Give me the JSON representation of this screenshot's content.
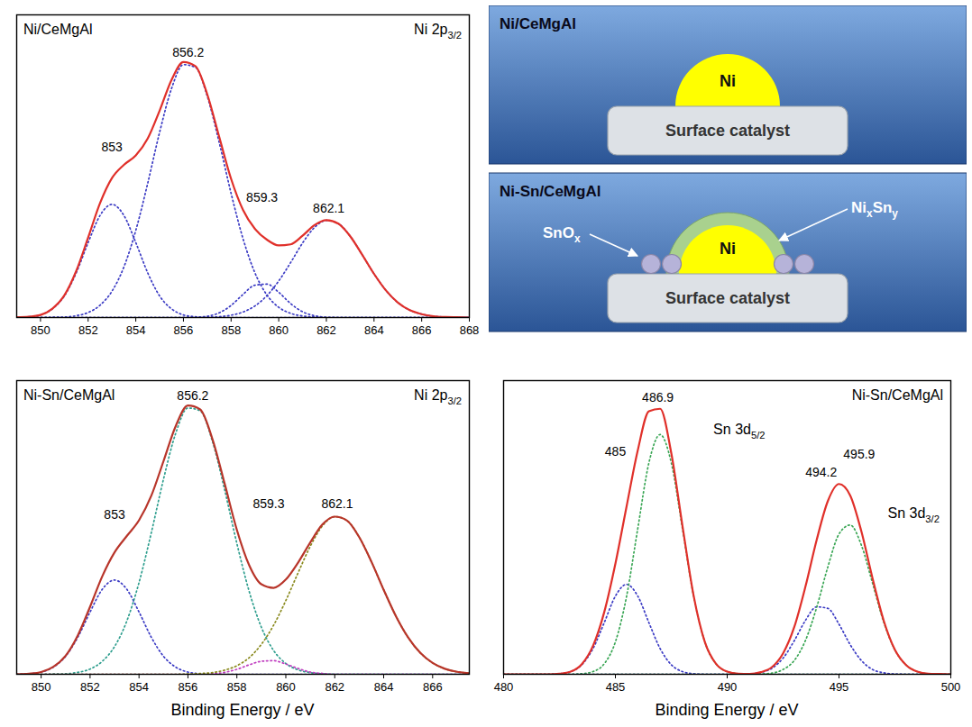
{
  "chart_data": [
    {
      "type": "line",
      "title": "Ni/CeMgAl",
      "subtitle": [
        {
          "t": "Ni 2p"
        },
        {
          "t": "3/2",
          "sub": true
        }
      ],
      "xlabel": null,
      "x": [
        849,
        849.5,
        850,
        850.5,
        851,
        851.5,
        852,
        852.5,
        853,
        853.5,
        854,
        854.5,
        855,
        855.5,
        856,
        856.5,
        857,
        857.5,
        858,
        858.5,
        859,
        859.5,
        860,
        860.5,
        861,
        861.5,
        862,
        862.5,
        863,
        863.5,
        864,
        864.5,
        865,
        865.5,
        866,
        866.5,
        867,
        867.5,
        868
      ],
      "series": [
        {
          "color": "#3b3bc4",
          "line_style": "dotted",
          "values": [
            0.1,
            0.3,
            1.0,
            3.3,
            8.2,
            17.0,
            28.5,
            38.8,
            43.0,
            38.8,
            28.5,
            17.0,
            8.2,
            3.3,
            1.0,
            0.3,
            0.1,
            0,
            0,
            0,
            0,
            0,
            0,
            0,
            0,
            0,
            0,
            0,
            0,
            0,
            0,
            0,
            0,
            0,
            0,
            0,
            0,
            0,
            0
          ]
        },
        {
          "color": "#3b3bc4",
          "line_style": "dotted",
          "values": [
            0,
            0,
            0,
            0.1,
            0.2,
            0.7,
            1.9,
            4.7,
            10.0,
            19.2,
            33.1,
            51.0,
            70.4,
            87.0,
            96.1,
            95.1,
            84.1,
            66.6,
            47.2,
            30.0,
            17.0,
            8.6,
            3.9,
            1.6,
            0.6,
            0.2,
            0,
            0,
            0,
            0,
            0,
            0,
            0,
            0,
            0,
            0,
            0,
            0,
            0
          ]
        },
        {
          "color": "#3b3bc4",
          "line_style": "dotted",
          "values": [
            0,
            0,
            0,
            0,
            0,
            0,
            0,
            0,
            0,
            0,
            0,
            0,
            0,
            0,
            0,
            0.1,
            0.5,
            1.8,
            4.6,
            8.8,
            12.3,
            12.7,
            9.6,
            5.3,
            2.2,
            0.7,
            0.1,
            0,
            0,
            0,
            0,
            0,
            0,
            0,
            0,
            0,
            0,
            0,
            0
          ]
        },
        {
          "color": "#3b3bc4",
          "line_style": "dotted",
          "values": [
            0,
            0,
            0,
            0,
            0,
            0,
            0,
            0,
            0,
            0,
            0,
            0,
            0,
            0,
            0,
            0.0,
            0.1,
            0.3,
            0.9,
            2.1,
            4.4,
            8.3,
            13.9,
            20.9,
            28.3,
            34.2,
            36.9,
            35.7,
            30.9,
            23.9,
            16.6,
            10.3,
            5.7,
            2.8,
            1.3,
            0.5,
            0.2,
            0.1,
            0
          ]
        },
        {
          "color": "#e0302a",
          "line_style": "solid",
          "values": [
            0.1,
            0.3,
            1.0,
            3.4,
            8.4,
            17.7,
            30.4,
            43.5,
            53.0,
            58.0,
            61.6,
            68.0,
            78.6,
            90.3,
            97.1,
            95.5,
            84.8,
            68.7,
            52.7,
            40.9,
            33.7,
            29.6,
            27.4,
            27.8,
            31.1,
            35.1,
            37.0,
            35.7,
            30.9,
            23.9,
            16.6,
            10.3,
            5.7,
            2.8,
            1.3,
            0.5,
            0.2,
            0.1,
            0
          ]
        }
      ],
      "xlim": [
        849,
        868
      ],
      "xticks": [
        850,
        852,
        854,
        856,
        858,
        860,
        862,
        864,
        866,
        868
      ],
      "ylim": [
        0,
        115
      ],
      "tick_labels": "x",
      "grid": false,
      "annotations": [
        {
          "text": "853",
          "x": 853,
          "y": 63
        },
        {
          "text": "856.2",
          "x": 856.2,
          "y": 99
        },
        {
          "text": "859.3",
          "x": 859.3,
          "y": 44
        },
        {
          "text": "862.1",
          "x": 862.1,
          "y": 40
        }
      ]
    },
    {
      "type": "line",
      "title": "Ni-Sn/CeMgAl",
      "subtitle": [
        {
          "t": "Ni 2p"
        },
        {
          "t": "3/2",
          "sub": true
        }
      ],
      "xlabel": "Binding Energy / eV",
      "x": [
        849,
        849.5,
        850,
        850.5,
        851,
        851.5,
        852,
        852.5,
        853,
        853.5,
        854,
        854.5,
        855,
        855.5,
        856,
        856.5,
        857,
        857.5,
        858,
        858.5,
        859,
        859.5,
        860,
        860.5,
        861,
        861.5,
        862,
        862.5,
        863,
        863.5,
        864,
        864.5,
        865,
        865.5,
        866,
        866.5,
        867,
        867.5
      ],
      "series": [
        {
          "color": "#3b3bc4",
          "line_style": "dotted",
          "values": [
            0.0,
            0.2,
            0.8,
            2.6,
            6.5,
            13.4,
            22.5,
            30.7,
            34.0,
            30.7,
            22.5,
            13.4,
            6.5,
            2.6,
            0.8,
            0.2,
            0.0,
            0,
            0,
            0,
            0,
            0,
            0,
            0,
            0,
            0,
            0,
            0,
            0,
            0,
            0,
            0,
            0,
            0,
            0,
            0,
            0,
            0
          ]
        },
        {
          "color": "#2e9e8e",
          "line_style": "dotted",
          "values": [
            0,
            0,
            0,
            0.1,
            0.2,
            0.7,
            1.9,
            4.7,
            10.0,
            19.2,
            33.1,
            51.0,
            70.4,
            87.0,
            96.1,
            95.1,
            84.1,
            66.6,
            47.2,
            30.0,
            17.0,
            8.6,
            3.9,
            1.6,
            0.6,
            0.2,
            0,
            0,
            0,
            0,
            0,
            0,
            0,
            0,
            0,
            0,
            0,
            0
          ]
        },
        {
          "color": "#c03ec0",
          "line_style": "dotted",
          "values": [
            0,
            0,
            0,
            0,
            0,
            0,
            0,
            0,
            0,
            0,
            0,
            0,
            0,
            0,
            0,
            0.0,
            0.2,
            0.7,
            1.8,
            3.4,
            4.7,
            4.9,
            3.7,
            2.1,
            0.8,
            0.3,
            0.0,
            0,
            0,
            0,
            0,
            0,
            0,
            0,
            0,
            0,
            0,
            0
          ]
        },
        {
          "color": "#8a8a1e",
          "line_style": "dotted",
          "values": [
            0,
            0,
            0,
            0,
            0,
            0,
            0,
            0,
            0,
            0,
            0,
            0,
            0,
            0,
            0.1,
            0.3,
            0.6,
            1.5,
            3.1,
            6.0,
            10.8,
            17.7,
            26.6,
            36.6,
            46.2,
            53.6,
            56.9,
            55.5,
            49.5,
            40.6,
            30.5,
            21.0,
            13.3,
            7.7,
            4.1,
            2.0,
            0.9,
            0.4
          ]
        },
        {
          "color": "#b8352a",
          "line_style": "solid",
          "values": [
            0.0,
            0.2,
            0.8,
            2.7,
            6.7,
            14.1,
            24.4,
            35.4,
            44.0,
            49.9,
            55.6,
            64.4,
            76.9,
            89.6,
            97.0,
            95.6,
            84.9,
            68.8,
            52.1,
            39.4,
            32.5,
            31.2,
            34.2,
            40.3,
            47.6,
            54.1,
            56.9,
            55.5,
            49.5,
            40.6,
            30.5,
            21.0,
            13.3,
            7.7,
            4.1,
            2.0,
            0.9,
            0.4
          ]
        }
      ],
      "xlim": [
        849,
        867.5
      ],
      "xticks": [
        850,
        852,
        854,
        856,
        858,
        860,
        862,
        864,
        866
      ],
      "ylim": [
        0,
        106
      ],
      "tick_labels": "x",
      "grid": false,
      "annotations": [
        {
          "text": "853",
          "x": 853,
          "y": 56
        },
        {
          "text": "856.2",
          "x": 856.2,
          "y": 99
        },
        {
          "text": "859.3",
          "x": 859.3,
          "y": 60
        },
        {
          "text": "862.1",
          "x": 862.1,
          "y": 60
        }
      ]
    },
    {
      "type": "line",
      "title": "Ni-Sn/CeMgAl",
      "xlabel": "Binding Energy / eV",
      "x": [
        480,
        480.5,
        481,
        481.5,
        482,
        482.5,
        483,
        483.5,
        484,
        484.5,
        485,
        485.5,
        486,
        486.5,
        487,
        487.5,
        488,
        488.5,
        489,
        489.5,
        490,
        490.5,
        491,
        491.5,
        492,
        492.5,
        493,
        493.5,
        494,
        494.5,
        495,
        495.5,
        496,
        496.5,
        497,
        497.5,
        498,
        498.5,
        499,
        499.5,
        500
      ],
      "series": [
        {
          "color": "#3b3bc4",
          "line_style": "dotted",
          "values": [
            0,
            0,
            0,
            0,
            0.0,
            0.2,
            0.9,
            3.2,
            8.6,
            17.2,
            26.1,
            30.0,
            26.1,
            17.2,
            8.6,
            3.2,
            0.9,
            0.2,
            0.0,
            0,
            0,
            0,
            0,
            0,
            0,
            0,
            0,
            0,
            0,
            0,
            0,
            0,
            0,
            0,
            0,
            0,
            0,
            0,
            0,
            0,
            0
          ]
        },
        {
          "color": "#3aa655",
          "line_style": "dotted",
          "values": [
            0,
            0,
            0,
            0,
            0,
            0,
            0,
            0.2,
            0.9,
            3.5,
            10.8,
            26.0,
            48.6,
            70.6,
            80.0,
            70.6,
            48.6,
            26.0,
            10.8,
            3.5,
            0.9,
            0.2,
            0,
            0,
            0,
            0,
            0,
            0,
            0,
            0,
            0,
            0,
            0,
            0,
            0,
            0,
            0,
            0,
            0,
            0,
            0
          ]
        },
        {
          "color": "#3b3bc4",
          "line_style": "dotted",
          "values": [
            0,
            0,
            0,
            0,
            0,
            0,
            0,
            0,
            0,
            0,
            0,
            0,
            0,
            0,
            0,
            0,
            0,
            0,
            0,
            0,
            0,
            0.0,
            0.1,
            0.6,
            2.0,
            5.4,
            11.2,
            18.0,
            22.5,
            22.0,
            16.7,
            9.9,
            4.6,
            1.6,
            0.5,
            0.1,
            0,
            0,
            0,
            0,
            0
          ]
        },
        {
          "color": "#3aa655",
          "line_style": "dotted",
          "values": [
            0,
            0,
            0,
            0,
            0,
            0,
            0,
            0,
            0,
            0,
            0,
            0,
            0,
            0,
            0,
            0,
            0,
            0,
            0,
            0,
            0,
            0,
            0,
            0.1,
            0.4,
            1.6,
            4.6,
            11.3,
            22.3,
            35.8,
            46.8,
            49.8,
            43.1,
            30.4,
            17.4,
            8.1,
            3.1,
            0.9,
            0.2,
            0.1,
            0
          ]
        },
        {
          "color": "#e0302a",
          "line_style": "solid",
          "values": [
            0,
            0,
            0,
            0,
            0.0,
            0.2,
            0.9,
            3.4,
            9.5,
            20.7,
            36.9,
            56.0,
            74.7,
            87.8,
            88.6,
            73.8,
            49.5,
            26.2,
            10.8,
            3.5,
            0.9,
            0.2,
            0.1,
            0.7,
            2.4,
            7.0,
            15.8,
            29.3,
            44.8,
            57.8,
            63.5,
            59.7,
            47.7,
            32.0,
            17.9,
            8.2,
            3.1,
            0.9,
            0.2,
            0.1,
            0
          ]
        }
      ],
      "xlim": [
        480,
        500
      ],
      "xticks": [
        480,
        485,
        490,
        495,
        500
      ],
      "ylim": [
        0,
        98
      ],
      "tick_labels": "x",
      "grid": false,
      "annotations": [
        {
          "text": "486.9",
          "x": 486.9,
          "y": 91
        },
        {
          "text": "485",
          "x": 485,
          "y": 73
        },
        {
          "text": "494.2",
          "x": 494.2,
          "y": 66
        },
        {
          "text": "495.9",
          "x": 495.9,
          "y": 72
        },
        {
          "parts": [
            {
              "t": "Sn 3d"
            },
            {
              "t": "5/2",
              "sub": true
            }
          ],
          "x": 489.4,
          "y": 80
        },
        {
          "parts": [
            {
              "t": "Sn 3d"
            },
            {
              "t": "3/2",
              "sub": true
            }
          ],
          "x": 497.2,
          "y": 52
        }
      ]
    }
  ],
  "diagram": {
    "panels": [
      {
        "title": "Ni/CeMgAl",
        "particle": "Ni",
        "support": "Surface catalyst"
      },
      {
        "title": "Ni-Sn/CeMgAl",
        "particle": "Ni",
        "support": "Surface catalyst",
        "shell": [
          {
            "t": "Ni"
          },
          {
            "t": "x",
            "sub": true
          },
          {
            "t": "Sn"
          },
          {
            "t": "y",
            "sub": true
          }
        ],
        "oxide": [
          {
            "t": "SnO"
          },
          {
            "t": "x",
            "sub": true
          }
        ]
      }
    ]
  }
}
